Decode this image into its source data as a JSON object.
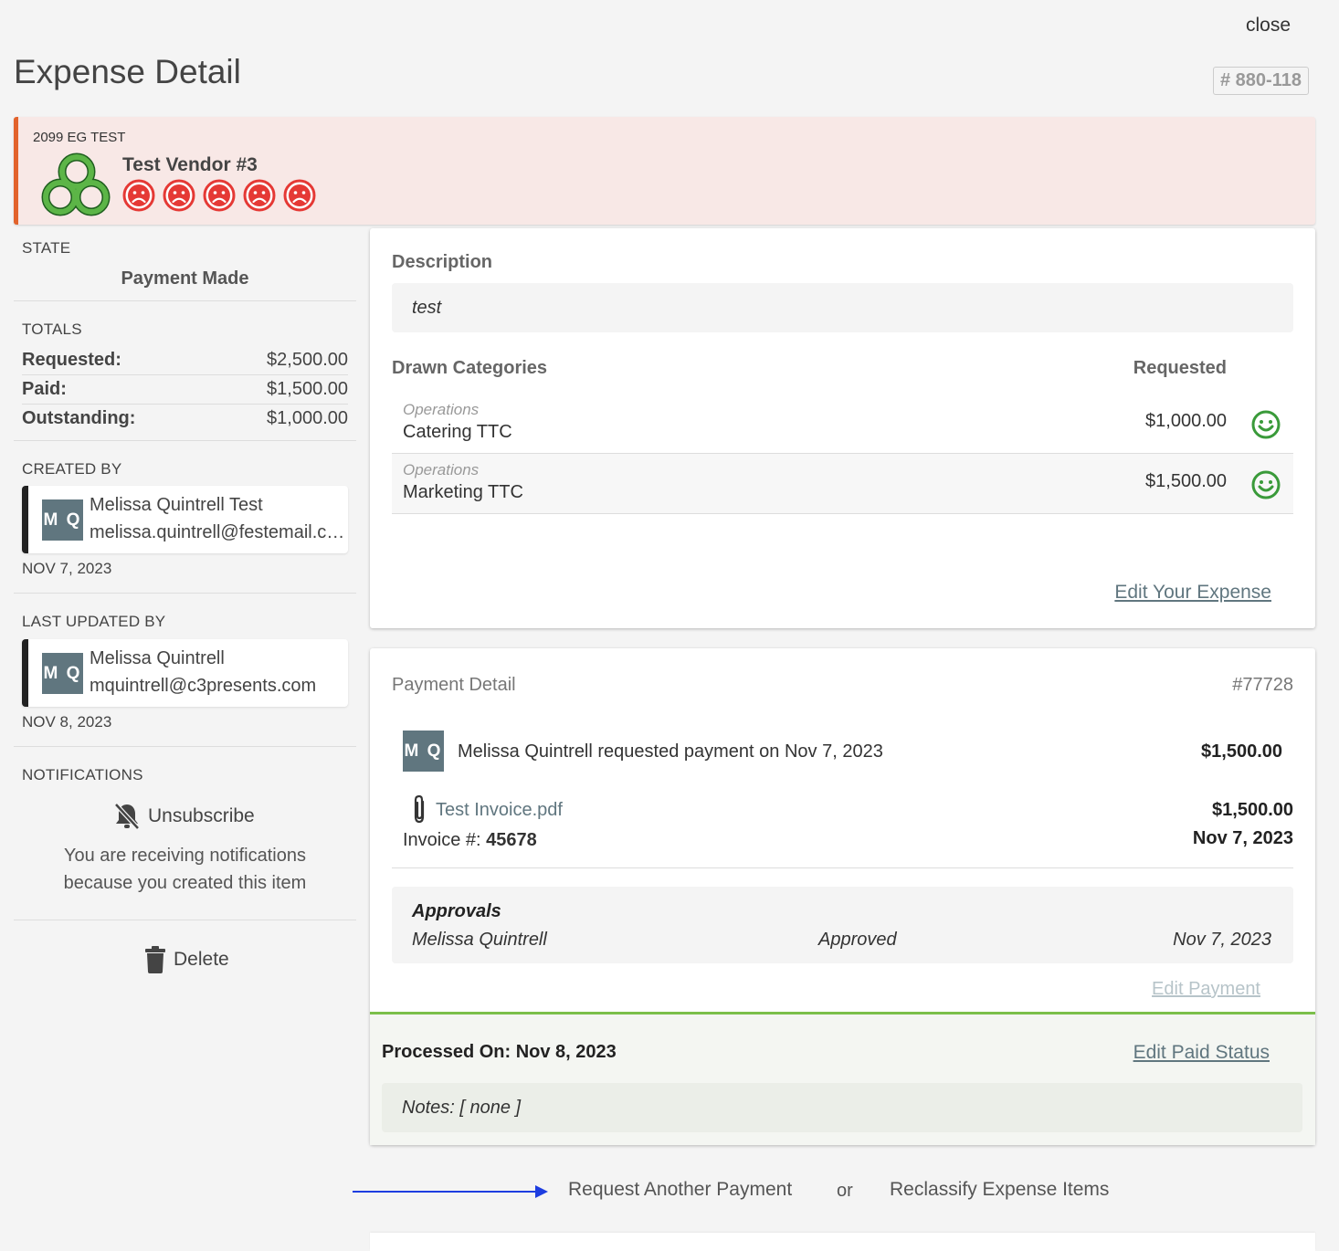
{
  "header": {
    "close_label": "close",
    "title": "Expense Detail",
    "expense_id": "# 880-118"
  },
  "vendor": {
    "project": "2099 EG TEST",
    "name": "Test Vendor #3",
    "rating_icons": [
      "frown-icon",
      "frown-icon",
      "frown-icon",
      "frown-icon",
      "frown-icon"
    ],
    "rating_color": "#e53935",
    "banner_accent": "#e2632c"
  },
  "sidebar": {
    "state_label": "STATE",
    "state_value": "Payment Made",
    "totals_label": "TOTALS",
    "totals": [
      {
        "label": "Requested:",
        "value": "$2,500.00"
      },
      {
        "label": "Paid:",
        "value": "$1,500.00"
      },
      {
        "label": "Outstanding:",
        "value": "$1,000.00"
      }
    ],
    "created_by": {
      "label": "CREATED BY",
      "initials": "M Q",
      "name": "Melissa Quintrell Test",
      "email": "melissa.quintrell@festemail.com",
      "date": "NOV 7, 2023"
    },
    "last_updated_by": {
      "label": "LAST UPDATED BY",
      "initials": "M Q",
      "name": "Melissa Quintrell",
      "email": "mquintrell@c3presents.com",
      "date": "NOV 8, 2023"
    },
    "notifications": {
      "label": "NOTIFICATIONS",
      "unsubscribe_label": "Unsubscribe",
      "line1": "You are receiving notifications",
      "line2": "because you created this item"
    },
    "delete_label": "Delete"
  },
  "description_panel": {
    "heading": "Description",
    "text": "test",
    "categories_heading": "Drawn Categories",
    "requested_heading": "Requested",
    "categories": [
      {
        "group": "Operations",
        "name": "Catering TTC",
        "amount": "$1,000.00",
        "status_icon": "smile-icon"
      },
      {
        "group": "Operations",
        "name": "Marketing TTC",
        "amount": "$1,500.00",
        "status_icon": "smile-icon"
      }
    ],
    "edit_link": "Edit Your Expense"
  },
  "payment_panel": {
    "title": "Payment Detail",
    "number": "#77728",
    "requester_initials": "M Q",
    "request_text": "Melissa Quintrell requested payment on Nov 7, 2023",
    "request_amount": "$1,500.00",
    "attachment": "Test Invoice.pdf",
    "invoice_label": "Invoice #: ",
    "invoice_number": "45678",
    "invoice_amount": "$1,500.00",
    "invoice_date": "Nov 7, 2023",
    "approvals": {
      "title": "Approvals",
      "approver": "Melissa Quintrell",
      "status": "Approved",
      "date": "Nov 7, 2023"
    },
    "edit_payment": "Edit Payment",
    "processed_label": "Processed On: Nov 8, 2023",
    "edit_paid_status": "Edit Paid Status",
    "notes": "Notes: [ none ]",
    "processed_accent": "#7bbf4a"
  },
  "footer": {
    "request_another": "Request Another Payment",
    "or": "or",
    "reclassify": "Reclassify Expense Items",
    "arrow_color": "#1d3de0"
  }
}
